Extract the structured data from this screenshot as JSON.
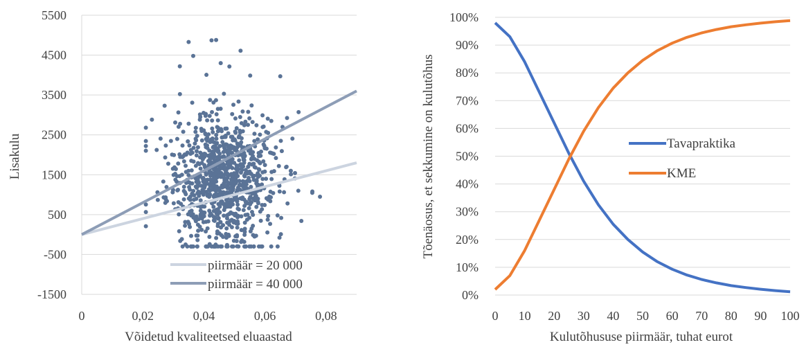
{
  "chart_data": [
    {
      "type": "scatter",
      "xlabel": "Võidetud kvaliteetsed eluaastad",
      "ylabel": "Lisakulu",
      "xlim": [
        0,
        0.09
      ],
      "ylim": [
        -1500,
        5500
      ],
      "x_ticks": [
        "0",
        "0,02",
        "0,04",
        "0,06",
        "0,08"
      ],
      "y_ticks": [
        "-1500",
        "-500",
        "500",
        "1500",
        "2500",
        "3500",
        "4500",
        "5500"
      ],
      "grid": "horizontal",
      "legend_position": "bottom-right",
      "colors": {
        "points": "#5a7396",
        "line_20000": "#ccd4e0",
        "line_40000": "#8d9db6",
        "grid": "#d9d9d9"
      },
      "point_distribution": {
        "n": 1000,
        "x_mean": 0.046,
        "x_sd": 0.009,
        "y_mean": 1350,
        "y_sd": 850
      },
      "sample_points": [
        {
          "x": 0.035,
          "y": 4830
        },
        {
          "x": 0.0425,
          "y": 4870
        },
        {
          "x": 0.044,
          "y": 4880
        },
        {
          "x": 0.0365,
          "y": 4480
        },
        {
          "x": 0.0455,
          "y": 4300
        },
        {
          "x": 0.052,
          "y": 4610
        },
        {
          "x": 0.065,
          "y": 3970
        },
        {
          "x": 0.021,
          "y": 2680
        },
        {
          "x": 0.071,
          "y": 3070
        },
        {
          "x": 0.0755,
          "y": 1080
        },
        {
          "x": 0.078,
          "y": 950
        },
        {
          "x": 0.034,
          "y": -250
        }
      ],
      "lines": [
        {
          "name": "piirmäär = 20 000",
          "slope": 20000
        },
        {
          "name": "piirmäär = 40 000",
          "slope": 40000
        }
      ]
    },
    {
      "type": "line",
      "xlabel": "Kulutõhususe piirmäär, tuhat eurot",
      "ylabel": "Tõenäosus, et sekkumine on kulutõhus",
      "xlim": [
        0,
        100
      ],
      "ylim": [
        0,
        1
      ],
      "x_ticks": [
        "0",
        "10",
        "20",
        "30",
        "40",
        "50",
        "60",
        "70",
        "80",
        "90",
        "100"
      ],
      "y_ticks": [
        "0%",
        "10%",
        "20%",
        "30%",
        "40%",
        "50%",
        "60%",
        "70%",
        "80%",
        "90%",
        "100%"
      ],
      "grid": "horizontal",
      "legend_position": "center-right",
      "x": [
        0,
        5,
        10,
        15,
        20,
        25,
        30,
        35,
        40,
        45,
        50,
        55,
        60,
        65,
        70,
        75,
        80,
        85,
        90,
        95,
        100
      ],
      "series": [
        {
          "name": "Tavapraktika",
          "color": "#4472c4",
          "values": [
            0.98,
            0.93,
            0.84,
            0.73,
            0.62,
            0.51,
            0.41,
            0.325,
            0.255,
            0.2,
            0.155,
            0.12,
            0.093,
            0.072,
            0.056,
            0.044,
            0.034,
            0.027,
            0.021,
            0.016,
            0.012
          ]
        },
        {
          "name": "KME",
          "color": "#ed7d31",
          "values": [
            0.02,
            0.07,
            0.16,
            0.27,
            0.38,
            0.49,
            0.59,
            0.675,
            0.745,
            0.8,
            0.845,
            0.88,
            0.907,
            0.928,
            0.944,
            0.956,
            0.966,
            0.973,
            0.979,
            0.984,
            0.988
          ]
        }
      ]
    }
  ]
}
